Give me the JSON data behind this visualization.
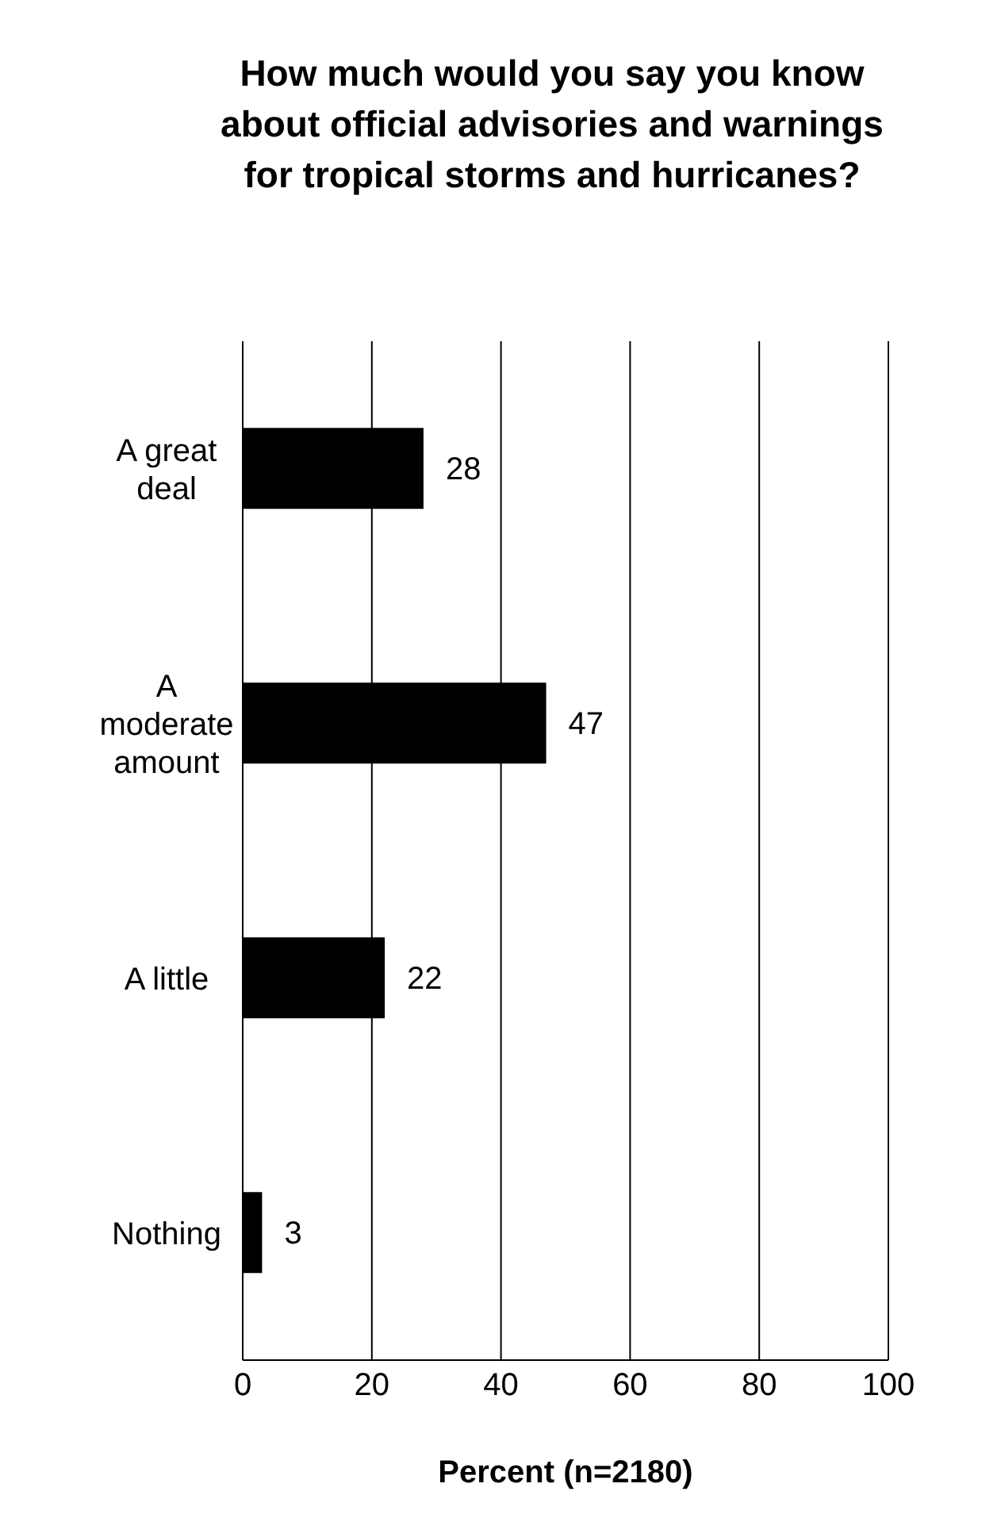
{
  "chart_data": {
    "type": "bar",
    "orientation": "horizontal",
    "title": "How much would you say you know about official advisories and warnings for tropical storms and hurricanes?",
    "xlabel": "Percent (n=2180)",
    "categories": [
      "A great deal",
      "A moderate amount",
      "A little",
      "Nothing"
    ],
    "values": [
      28,
      47,
      22,
      3
    ],
    "color": "#000000",
    "data_labels": true,
    "xlim": [
      0,
      100
    ],
    "xticks": [
      0,
      20,
      40,
      60,
      80,
      100
    ],
    "grid": "x"
  }
}
